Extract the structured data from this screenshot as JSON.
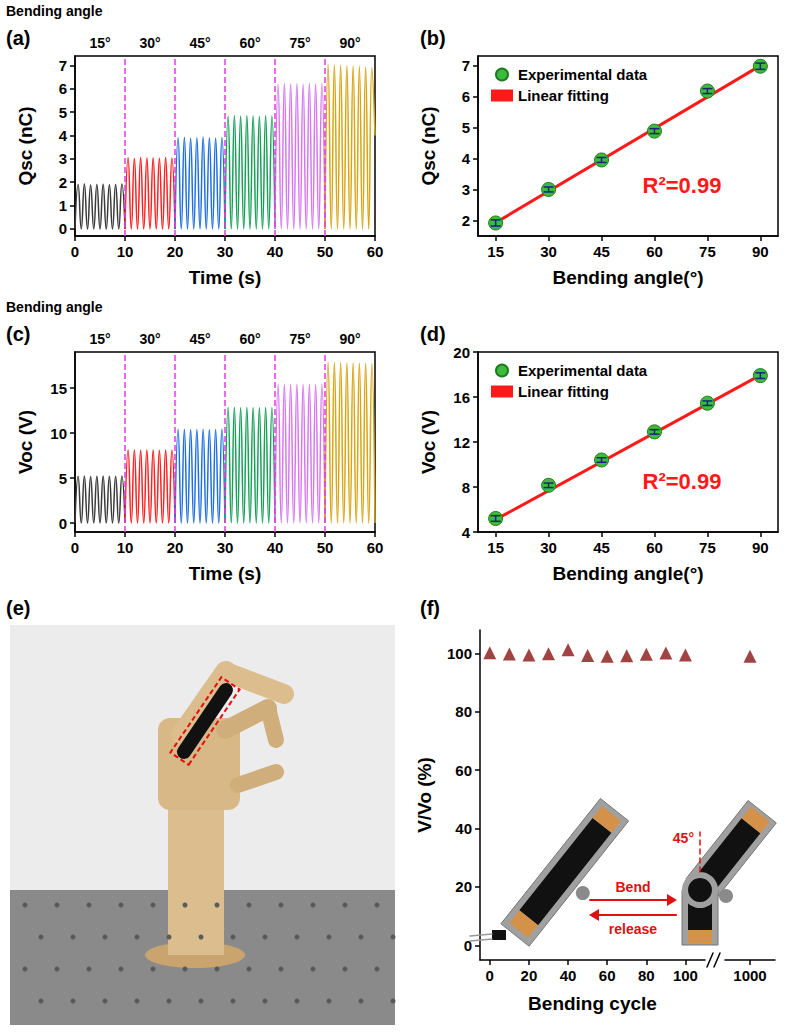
{
  "chart_data": [
    {
      "panel": "(a)",
      "type": "line",
      "header": "Bending angle",
      "segment_labels": [
        "15°",
        "30°",
        "45°",
        "60°",
        "75°",
        "90°"
      ],
      "dividers": [
        10,
        20,
        30,
        40,
        50
      ],
      "xlabel": "Time (s)",
      "ylabel": "Qsc (nC)",
      "xlim": [
        0,
        60
      ],
      "xticks": [
        0,
        10,
        20,
        30,
        40,
        50,
        60
      ],
      "ylim": [
        -0.3,
        7.4
      ],
      "yticks": [
        0,
        1,
        2,
        3,
        4,
        5,
        6,
        7
      ],
      "grid": false,
      "series": [
        {
          "color": "#3a3a3a",
          "x": [
            0,
            0.625,
            1.25,
            1.875,
            2.5,
            3.125,
            3.75,
            4.375,
            5,
            5.625,
            6.25,
            6.875,
            7.5,
            8.125,
            8.75,
            9.375,
            10
          ],
          "values": [
            0,
            1.9,
            0,
            1.92,
            0,
            1.88,
            0,
            1.9,
            0,
            1.91,
            0,
            1.89,
            0,
            1.9,
            0,
            1.92,
            0
          ]
        },
        {
          "color": "#ff2020",
          "x": [
            10,
            10.625,
            11.25,
            11.875,
            12.5,
            13.125,
            13.75,
            14.375,
            15,
            15.625,
            16.25,
            16.875,
            17.5,
            18.125,
            18.75,
            19.375,
            20
          ],
          "values": [
            0,
            3.05,
            0,
            3.02,
            0,
            3.06,
            0,
            3.04,
            0,
            3.05,
            0,
            3.03,
            0,
            3.06,
            0,
            3.04,
            0
          ]
        },
        {
          "color": "#1f6fe0",
          "x": [
            20,
            20.625,
            21.25,
            21.875,
            22.5,
            23.125,
            23.75,
            24.375,
            25,
            25.625,
            26.25,
            26.875,
            27.5,
            28.125,
            28.75,
            29.375,
            30
          ],
          "values": [
            0,
            3.9,
            0,
            3.92,
            0,
            3.88,
            0,
            3.9,
            0,
            3.93,
            0,
            3.9,
            0,
            3.89,
            0,
            3.91,
            0
          ]
        },
        {
          "color": "#18a058",
          "x": [
            30,
            30.625,
            31.25,
            31.875,
            32.5,
            33.125,
            33.75,
            34.375,
            35,
            35.625,
            36.25,
            36.875,
            37.5,
            38.125,
            38.75,
            39.375,
            40
          ],
          "values": [
            0,
            4.82,
            0,
            4.85,
            0,
            4.83,
            0,
            4.86,
            0,
            4.84,
            0,
            4.82,
            0,
            4.85,
            0,
            4.83,
            0
          ]
        },
        {
          "color": "#d777f0",
          "x": [
            40,
            40.625,
            41.25,
            41.875,
            42.5,
            43.125,
            43.75,
            44.375,
            45,
            45.625,
            46.25,
            46.875,
            47.5,
            48.125,
            48.75,
            49.375,
            50
          ],
          "values": [
            0,
            6.18,
            0,
            6.22,
            0,
            6.2,
            0,
            6.21,
            0,
            6.19,
            0,
            6.22,
            0,
            6.2,
            0,
            6.21,
            0
          ]
        },
        {
          "color": "#d9a514",
          "x": [
            50,
            50.625,
            51.25,
            51.875,
            52.5,
            53.125,
            53.75,
            54.375,
            55,
            55.625,
            56.25,
            56.875,
            57.5,
            58.125,
            58.75,
            59.375,
            60
          ],
          "values": [
            0,
            7.05,
            0,
            7.02,
            0,
            7.0,
            0,
            6.98,
            0,
            6.97,
            0,
            6.95,
            0,
            6.92,
            0,
            6.9,
            4.0
          ]
        }
      ]
    },
    {
      "panel": "(b)",
      "type": "scatter",
      "xlabel": "Bending angle(°)",
      "ylabel": "Qsc (nC)",
      "xlim": [
        10,
        95
      ],
      "xticks": [
        15,
        30,
        45,
        60,
        75,
        90
      ],
      "ylim": [
        1.5,
        7.3
      ],
      "yticks": [
        2,
        3,
        4,
        5,
        6,
        7
      ],
      "grid": false,
      "legend": "upper left",
      "annotations": [
        "R²=0.99"
      ],
      "series": [
        {
          "name": "Experimental data",
          "type": "scatter",
          "marker": "circle",
          "color": "#3dbb3d",
          "x": [
            15,
            30,
            45,
            60,
            75,
            90
          ],
          "values": [
            1.92,
            3.0,
            3.95,
            4.88,
            6.17,
            6.97
          ],
          "errors": [
            0.1,
            0.08,
            0.08,
            0.08,
            0.08,
            0.1
          ]
        },
        {
          "name": "Linear fitting",
          "type": "line",
          "color": "#ff1a1a",
          "x": [
            15,
            90
          ],
          "values": [
            1.93,
            6.99
          ]
        }
      ]
    },
    {
      "panel": "(c)",
      "type": "line",
      "header": "Bending angle",
      "segment_labels": [
        "15°",
        "30°",
        "45°",
        "60°",
        "75°",
        "90°"
      ],
      "dividers": [
        10,
        20,
        30,
        40,
        50
      ],
      "xlabel": "Time (s)",
      "ylabel": "Voc (V)",
      "xlim": [
        0,
        60
      ],
      "xticks": [
        0,
        10,
        20,
        30,
        40,
        50,
        60
      ],
      "ylim": [
        -1,
        19
      ],
      "yticks": [
        0,
        5,
        10,
        15
      ],
      "grid": false,
      "series": [
        {
          "color": "#3a3a3a",
          "x": [
            0,
            0.625,
            1.25,
            1.875,
            2.5,
            3.125,
            3.75,
            4.375,
            5,
            5.625,
            6.25,
            6.875,
            7.5,
            8.125,
            8.75,
            9.375,
            10
          ],
          "values": [
            0,
            5.2,
            0,
            5.22,
            0,
            5.18,
            0,
            5.2,
            0,
            5.21,
            0,
            5.19,
            0,
            5.2,
            0,
            5.22,
            0
          ]
        },
        {
          "color": "#ff2020",
          "x": [
            10,
            10.625,
            11.25,
            11.875,
            12.5,
            13.125,
            13.75,
            14.375,
            15,
            15.625,
            16.25,
            16.875,
            17.5,
            18.125,
            18.75,
            19.375,
            20
          ],
          "values": [
            0,
            8.1,
            0,
            8.12,
            0,
            8.08,
            0,
            8.1,
            0,
            8.11,
            0,
            8.09,
            0,
            8.1,
            0,
            8.12,
            0
          ]
        },
        {
          "color": "#1f6fe0",
          "x": [
            20,
            20.625,
            21.25,
            21.875,
            22.5,
            23.125,
            23.75,
            24.375,
            25,
            25.625,
            26.25,
            26.875,
            27.5,
            28.125,
            28.75,
            29.375,
            30
          ],
          "values": [
            0,
            10.4,
            0,
            10.42,
            0,
            10.38,
            0,
            10.4,
            0,
            10.43,
            0,
            10.4,
            0,
            10.39,
            0,
            10.41,
            0
          ]
        },
        {
          "color": "#18a058",
          "x": [
            30,
            30.625,
            31.25,
            31.875,
            32.5,
            33.125,
            33.75,
            34.375,
            35,
            35.625,
            36.25,
            36.875,
            37.5,
            38.125,
            38.75,
            39.375,
            40
          ],
          "values": [
            0,
            12.82,
            0,
            12.85,
            0,
            12.83,
            0,
            12.86,
            0,
            12.84,
            0,
            12.82,
            0,
            12.85,
            0,
            12.83,
            0
          ]
        },
        {
          "color": "#d777f0",
          "x": [
            40,
            40.625,
            41.25,
            41.875,
            42.5,
            43.125,
            43.75,
            44.375,
            45,
            45.625,
            46.25,
            46.875,
            47.5,
            48.125,
            48.75,
            49.375,
            50
          ],
          "values": [
            0,
            15.38,
            0,
            15.42,
            0,
            15.4,
            0,
            15.41,
            0,
            15.39,
            0,
            15.42,
            0,
            15.4,
            0,
            15.41,
            0
          ]
        },
        {
          "color": "#d9a514",
          "x": [
            50,
            50.625,
            51.25,
            51.875,
            52.5,
            53.125,
            53.75,
            54.375,
            55,
            55.625,
            56.25,
            56.875,
            57.5,
            58.125,
            58.75,
            59.375,
            60
          ],
          "values": [
            0,
            17.85,
            0,
            17.82,
            0,
            17.8,
            0,
            17.78,
            0,
            17.77,
            0,
            17.75,
            0,
            17.72,
            0,
            17.7,
            0
          ]
        }
      ]
    },
    {
      "panel": "(d)",
      "type": "scatter",
      "xlabel": "Bending angle(°)",
      "ylabel": "Voc (V)",
      "xlim": [
        10,
        95
      ],
      "xticks": [
        15,
        30,
        45,
        60,
        75,
        90
      ],
      "ylim": [
        4,
        20
      ],
      "yticks": [
        4,
        8,
        12,
        16,
        20
      ],
      "grid": false,
      "legend": "upper left",
      "annotations": [
        "R²=0.99"
      ],
      "series": [
        {
          "name": "Experimental data",
          "type": "scatter",
          "marker": "circle",
          "color": "#3dbb3d",
          "x": [
            15,
            30,
            45,
            60,
            75,
            90
          ],
          "values": [
            5.2,
            8.15,
            10.4,
            12.9,
            15.45,
            17.9
          ],
          "errors": [
            0.25,
            0.2,
            0.2,
            0.2,
            0.2,
            0.25
          ]
        },
        {
          "name": "Linear fitting",
          "type": "line",
          "color": "#ff1a1a",
          "x": [
            15,
            90
          ],
          "values": [
            5.1,
            17.95
          ]
        }
      ]
    },
    {
      "panel": "(f)",
      "type": "scatter",
      "marker": "triangle",
      "color": "#8b1414",
      "xlabel": "Bending cycle",
      "ylabel": "V/Vo (%)",
      "xlim": [
        -5,
        110
      ],
      "xticks": [
        0,
        20,
        40,
        60,
        80,
        100
      ],
      "xlim2": [
        985,
        1015
      ],
      "xticks2": [
        1000
      ],
      "ylim": [
        -5,
        108
      ],
      "yticks": [
        0,
        20,
        40,
        60,
        80,
        100
      ],
      "grid": false,
      "annotations": [
        "Bend",
        "release",
        "45°"
      ],
      "x": [
        0,
        10,
        20,
        30,
        40,
        50,
        60,
        70,
        80,
        90,
        100,
        1000
      ],
      "values": [
        100.2,
        99.8,
        99.4,
        99.9,
        101.2,
        99.3,
        99.0,
        99.2,
        99.7,
        100.1,
        99.4,
        99.0
      ]
    }
  ],
  "image_panel": {
    "panel": "(e)"
  }
}
